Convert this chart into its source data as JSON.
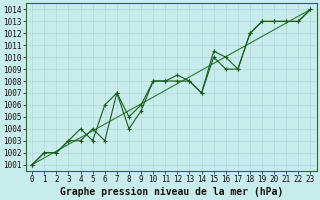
{
  "xlabel": "Graphe pression niveau de la mer (hPa)",
  "xlim": [
    -0.5,
    23.5
  ],
  "ylim": [
    1000.5,
    1014.5
  ],
  "yticks": [
    1001,
    1002,
    1003,
    1004,
    1005,
    1006,
    1007,
    1008,
    1009,
    1010,
    1011,
    1012,
    1013,
    1014
  ],
  "xticks": [
    0,
    1,
    2,
    3,
    4,
    5,
    6,
    7,
    8,
    9,
    10,
    11,
    12,
    13,
    14,
    15,
    16,
    17,
    18,
    19,
    20,
    21,
    22,
    23
  ],
  "bg_color": "#c8ecec",
  "grid_color": "#b0d8d8",
  "line_color": "#1a5c1a",
  "trend_color": "#2d7a2d",
  "series1_y": [
    1001.0,
    1002.0,
    1002.0,
    1003.0,
    1003.0,
    1004.0,
    1003.0,
    1007.0,
    1004.0,
    1005.5,
    1008.0,
    1008.0,
    1008.0,
    1008.0,
    1007.0,
    1010.0,
    1009.0,
    1009.0,
    1012.0,
    1013.0,
    1013.0,
    1013.0,
    1013.0,
    1014.0
  ],
  "series2_y": [
    1001.0,
    1002.0,
    1002.0,
    1003.0,
    1004.0,
    1003.0,
    1006.0,
    1007.0,
    1005.0,
    1006.0,
    1008.0,
    1008.0,
    1008.5,
    1008.0,
    1007.0,
    1010.5,
    1010.0,
    1009.0,
    1012.0,
    1013.0,
    1013.0,
    1013.0,
    1013.0,
    1014.0
  ],
  "trend_x": [
    0,
    23
  ],
  "trend_y": [
    1001.0,
    1014.0
  ],
  "font_family": "monospace",
  "tick_fontsize": 5.5,
  "label_fontsize": 7.0,
  "linewidth": 0.8,
  "markersize": 2.5,
  "label_fontweight": "bold"
}
